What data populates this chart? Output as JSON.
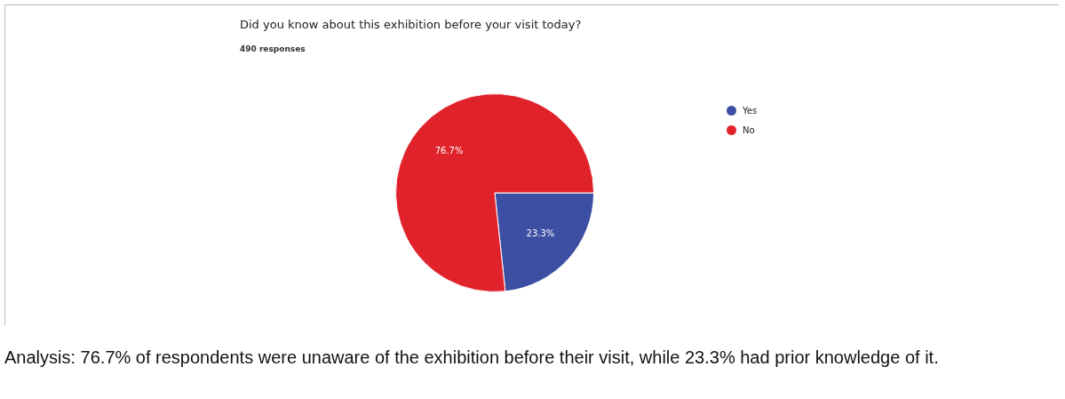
{
  "chart_data": {
    "type": "pie",
    "title": "Did you know about this exhibition before your visit today?",
    "subtitle": "490 responses",
    "categories": [
      "Yes",
      "No"
    ],
    "values": [
      23.3,
      76.7
    ],
    "colors": [
      "#3c4fa3",
      "#e0232b"
    ],
    "value_labels": [
      "23.3%",
      "76.7%"
    ],
    "legend": "top right",
    "annotations": [
      "Analysis: 76.7% of respondents were unaware of the exhibition before their visit, while 23.3% had prior knowledge of it."
    ]
  }
}
